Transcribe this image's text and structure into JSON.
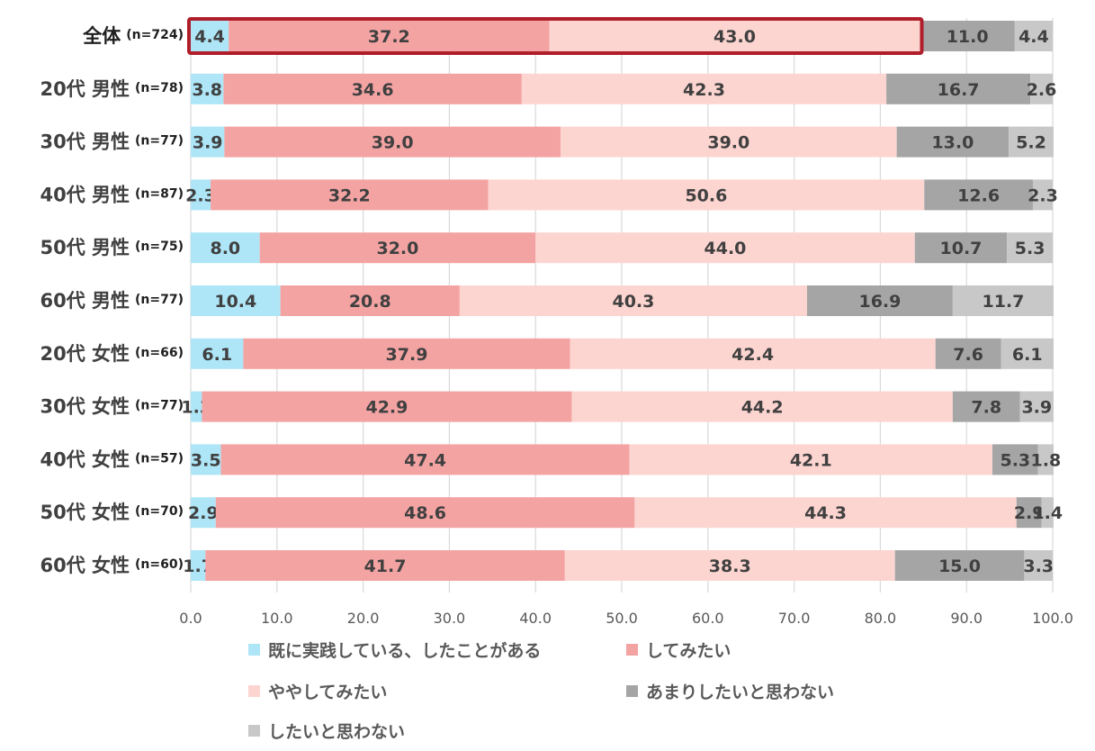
{
  "chart_data": {
    "type": "bar",
    "orientation": "horizontal",
    "stacked": true,
    "categories": [
      {
        "label": "全体",
        "n": "(n=724)"
      },
      {
        "label": "20代 男性",
        "n": "(n=78)"
      },
      {
        "label": "30代 男性",
        "n": "(n=77)"
      },
      {
        "label": "40代 男性",
        "n": "(n=87)"
      },
      {
        "label": "50代 男性",
        "n": "(n=75)"
      },
      {
        "label": "60代 男性",
        "n": "(n=77)"
      },
      {
        "label": "20代 女性",
        "n": "(n=66)"
      },
      {
        "label": "30代 女性",
        "n": "(n=77)"
      },
      {
        "label": "40代 女性",
        "n": "(n=57)"
      },
      {
        "label": "50代 女性",
        "n": "(n=70)"
      },
      {
        "label": "60代 女性",
        "n": "(n=60)"
      }
    ],
    "series": [
      {
        "name": "既に実践している、したことがある",
        "color": "#aee6f7",
        "values": [
          4.4,
          3.8,
          3.9,
          2.3,
          8.0,
          10.4,
          6.1,
          1.3,
          3.5,
          2.9,
          1.7
        ]
      },
      {
        "name": "してみたい",
        "color": "#f4a3a3",
        "values": [
          37.2,
          34.6,
          39.0,
          32.2,
          32.0,
          20.8,
          37.9,
          42.9,
          47.4,
          48.6,
          41.7
        ]
      },
      {
        "name": "ややしてみたい",
        "color": "#fdd5d0",
        "values": [
          43.0,
          42.3,
          39.0,
          50.6,
          44.0,
          40.3,
          42.4,
          44.2,
          42.1,
          44.3,
          38.3
        ]
      },
      {
        "name": "あまりしたいと思わない",
        "color": "#a5a5a5",
        "values": [
          11.0,
          16.7,
          13.0,
          12.6,
          10.7,
          16.9,
          7.6,
          7.8,
          5.3,
          2.9,
          15.0
        ]
      },
      {
        "name": "したいと思わない",
        "color": "#c8c8c8",
        "values": [
          4.4,
          2.6,
          5.2,
          2.3,
          5.3,
          11.7,
          6.1,
          3.9,
          1.8,
          1.4,
          3.3
        ]
      }
    ],
    "xlim": [
      0,
      100
    ],
    "xticks": [
      "0.0",
      "10.0",
      "20.0",
      "30.0",
      "40.0",
      "50.0",
      "60.0",
      "70.0",
      "80.0",
      "90.0",
      "100.0"
    ],
    "grid": true,
    "legend_position": "bottom",
    "highlight": {
      "category_index": 0,
      "series_range": [
        0,
        2
      ],
      "color": "#b01e2a"
    }
  }
}
